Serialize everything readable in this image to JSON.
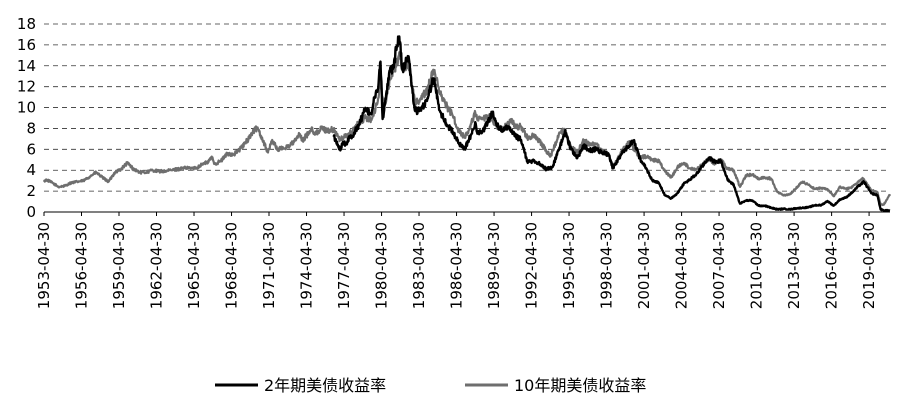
{
  "chart_data": {
    "type": "line",
    "title": "",
    "xlabel": "",
    "ylabel": "",
    "ylim": [
      0,
      18
    ],
    "y_ticks": [
      "0",
      "2",
      "4",
      "6",
      "8",
      "10",
      "12",
      "14",
      "16",
      "18"
    ],
    "x_range": [
      "1953-04-30",
      "2020-12-31"
    ],
    "x_ticks": [
      "1953-04-30",
      "1956-04-30",
      "1959-04-30",
      "1962-04-30",
      "1965-04-30",
      "1968-04-30",
      "1971-04-30",
      "1974-04-30",
      "1977-04-30",
      "1980-04-30",
      "1983-04-30",
      "1986-04-30",
      "1989-04-30",
      "1992-04-30",
      "1995-04-30",
      "1998-04-30",
      "2001-04-30",
      "2004-04-30",
      "2007-04-30",
      "2010-04-30",
      "2013-04-30",
      "2016-04-30",
      "2019-04-30"
    ],
    "grid": "horizontal dashed",
    "legend_position": "bottom",
    "series": [
      {
        "name": "2年期美债收益率",
        "color": "#000000",
        "points": [
          [
            "1976-06-30",
            7.2
          ],
          [
            "1976-12-31",
            6.0
          ],
          [
            "1977-03-31",
            6.7
          ],
          [
            "1977-06-30",
            6.5
          ],
          [
            "1977-09-30",
            7.2
          ],
          [
            "1977-12-31",
            7.3
          ],
          [
            "1978-06-30",
            8.3
          ],
          [
            "1978-12-31",
            9.8
          ],
          [
            "1979-06-30",
            9.4
          ],
          [
            "1979-09-30",
            10.9
          ],
          [
            "1979-12-31",
            11.5
          ],
          [
            "1980-03-31",
            14.4
          ],
          [
            "1980-05-31",
            8.9
          ],
          [
            "1980-08-31",
            10.8
          ],
          [
            "1980-12-31",
            13.5
          ],
          [
            "1981-03-31",
            13.7
          ],
          [
            "1981-06-30",
            15.5
          ],
          [
            "1981-09-30",
            16.8
          ],
          [
            "1981-12-31",
            13.6
          ],
          [
            "1982-03-31",
            14.3
          ],
          [
            "1982-06-30",
            14.9
          ],
          [
            "1982-09-30",
            12.0
          ],
          [
            "1982-12-31",
            9.7
          ],
          [
            "1983-06-30",
            9.7
          ],
          [
            "1983-12-31",
            10.9
          ],
          [
            "1984-06-30",
            12.8
          ],
          [
            "1984-12-31",
            9.7
          ],
          [
            "1985-06-30",
            8.5
          ],
          [
            "1985-12-31",
            7.7
          ],
          [
            "1986-06-30",
            6.6
          ],
          [
            "1986-12-31",
            6.1
          ],
          [
            "1987-06-30",
            7.4
          ],
          [
            "1987-10-31",
            8.6
          ],
          [
            "1987-12-31",
            7.5
          ],
          [
            "1988-06-30",
            7.9
          ],
          [
            "1988-12-31",
            9.0
          ],
          [
            "1989-03-31",
            9.6
          ],
          [
            "1989-06-30",
            8.5
          ],
          [
            "1989-12-31",
            7.7
          ],
          [
            "1990-06-30",
            8.2
          ],
          [
            "1990-12-31",
            7.3
          ],
          [
            "1991-06-30",
            6.9
          ],
          [
            "1991-12-31",
            4.8
          ],
          [
            "1992-06-30",
            4.9
          ],
          [
            "1992-12-31",
            4.6
          ],
          [
            "1993-06-30",
            4.1
          ],
          [
            "1993-12-31",
            4.3
          ],
          [
            "1994-06-30",
            5.9
          ],
          [
            "1994-12-31",
            7.7
          ],
          [
            "1995-06-30",
            6.0
          ],
          [
            "1995-12-31",
            5.2
          ],
          [
            "1996-06-30",
            6.3
          ],
          [
            "1996-12-31",
            5.9
          ],
          [
            "1997-06-30",
            6.0
          ],
          [
            "1997-12-31",
            5.7
          ],
          [
            "1998-06-30",
            5.5
          ],
          [
            "1998-10-31",
            4.2
          ],
          [
            "1998-12-31",
            4.5
          ],
          [
            "1999-06-30",
            5.5
          ],
          [
            "1999-12-31",
            6.2
          ],
          [
            "2000-06-30",
            6.8
          ],
          [
            "2000-12-31",
            5.1
          ],
          [
            "2001-06-30",
            4.2
          ],
          [
            "2001-12-31",
            3.0
          ],
          [
            "2002-06-30",
            2.8
          ],
          [
            "2002-12-31",
            1.6
          ],
          [
            "2003-06-30",
            1.3
          ],
          [
            "2003-12-31",
            1.8
          ],
          [
            "2004-06-30",
            2.7
          ],
          [
            "2004-12-31",
            3.1
          ],
          [
            "2005-06-30",
            3.6
          ],
          [
            "2005-12-31",
            4.4
          ],
          [
            "2006-06-30",
            5.2
          ],
          [
            "2006-12-31",
            4.8
          ],
          [
            "2007-06-30",
            4.9
          ],
          [
            "2007-12-31",
            3.1
          ],
          [
            "2008-06-30",
            2.6
          ],
          [
            "2008-12-31",
            0.8
          ],
          [
            "2009-06-30",
            1.1
          ],
          [
            "2009-12-31",
            1.1
          ],
          [
            "2010-06-30",
            0.6
          ],
          [
            "2010-12-31",
            0.6
          ],
          [
            "2011-06-30",
            0.4
          ],
          [
            "2011-12-31",
            0.25
          ],
          [
            "2012-06-30",
            0.3
          ],
          [
            "2012-12-31",
            0.25
          ],
          [
            "2013-06-30",
            0.35
          ],
          [
            "2013-12-31",
            0.4
          ],
          [
            "2014-06-30",
            0.45
          ],
          [
            "2014-12-31",
            0.65
          ],
          [
            "2015-06-30",
            0.65
          ],
          [
            "2015-12-31",
            1.05
          ],
          [
            "2016-06-30",
            0.6
          ],
          [
            "2016-12-31",
            1.2
          ],
          [
            "2017-06-30",
            1.4
          ],
          [
            "2017-12-31",
            1.9
          ],
          [
            "2018-06-30",
            2.5
          ],
          [
            "2018-11-30",
            2.9
          ],
          [
            "2019-06-30",
            1.8
          ],
          [
            "2019-12-31",
            1.6
          ],
          [
            "2020-03-31",
            0.25
          ],
          [
            "2020-06-30",
            0.16
          ],
          [
            "2020-12-31",
            0.13
          ]
        ]
      },
      {
        "name": "10年期美债收益率",
        "color": "#6e6e6e",
        "points": [
          [
            "1953-04-30",
            2.9
          ],
          [
            "1953-06-30",
            3.1
          ],
          [
            "1953-12-31",
            2.8
          ],
          [
            "1954-06-30",
            2.4
          ],
          [
            "1954-12-31",
            2.5
          ],
          [
            "1955-06-30",
            2.8
          ],
          [
            "1955-12-31",
            2.9
          ],
          [
            "1956-06-30",
            3.0
          ],
          [
            "1956-12-31",
            3.4
          ],
          [
            "1957-06-30",
            3.8
          ],
          [
            "1957-12-31",
            3.3
          ],
          [
            "1958-06-30",
            2.9
          ],
          [
            "1958-12-31",
            3.8
          ],
          [
            "1959-06-30",
            4.1
          ],
          [
            "1959-12-31",
            4.7
          ],
          [
            "1960-06-30",
            4.1
          ],
          [
            "1960-12-31",
            3.8
          ],
          [
            "1961-06-30",
            3.8
          ],
          [
            "1961-12-31",
            4.0
          ],
          [
            "1962-06-30",
            3.9
          ],
          [
            "1962-12-31",
            3.9
          ],
          [
            "1963-06-30",
            4.0
          ],
          [
            "1963-12-31",
            4.1
          ],
          [
            "1964-06-30",
            4.2
          ],
          [
            "1964-12-31",
            4.2
          ],
          [
            "1965-06-30",
            4.2
          ],
          [
            "1965-12-31",
            4.6
          ],
          [
            "1966-06-30",
            4.8
          ],
          [
            "1966-09-30",
            5.3
          ],
          [
            "1966-12-31",
            4.6
          ],
          [
            "1967-06-30",
            4.9
          ],
          [
            "1967-12-31",
            5.6
          ],
          [
            "1968-06-30",
            5.5
          ],
          [
            "1968-12-31",
            6.0
          ],
          [
            "1969-06-30",
            6.7
          ],
          [
            "1969-12-31",
            7.6
          ],
          [
            "1970-05-31",
            8.1
          ],
          [
            "1970-12-31",
            6.4
          ],
          [
            "1971-03-31",
            5.7
          ],
          [
            "1971-07-31",
            6.9
          ],
          [
            "1971-12-31",
            6.0
          ],
          [
            "1972-06-30",
            6.1
          ],
          [
            "1972-12-31",
            6.4
          ],
          [
            "1973-06-30",
            6.9
          ],
          [
            "1973-09-30",
            7.5
          ],
          [
            "1973-12-31",
            6.8
          ],
          [
            "1974-06-30",
            7.6
          ],
          [
            "1974-09-30",
            8.1
          ],
          [
            "1974-12-31",
            7.4
          ],
          [
            "1975-06-30",
            8.0
          ],
          [
            "1975-12-31",
            7.8
          ],
          [
            "1976-06-30",
            7.9
          ],
          [
            "1976-12-31",
            6.9
          ],
          [
            "1977-06-30",
            7.3
          ],
          [
            "1977-12-31",
            7.7
          ],
          [
            "1978-06-30",
            8.5
          ],
          [
            "1978-12-31",
            9.0
          ],
          [
            "1979-06-30",
            8.9
          ],
          [
            "1979-12-31",
            10.4
          ],
          [
            "1980-03-31",
            12.7
          ],
          [
            "1980-06-30",
            9.8
          ],
          [
            "1980-12-31",
            12.8
          ],
          [
            "1981-06-30",
            13.9
          ],
          [
            "1981-09-30",
            15.3
          ],
          [
            "1981-12-31",
            13.7
          ],
          [
            "1982-06-30",
            14.3
          ],
          [
            "1982-12-31",
            10.5
          ],
          [
            "1983-06-30",
            10.8
          ],
          [
            "1983-12-31",
            11.8
          ],
          [
            "1984-06-30",
            13.6
          ],
          [
            "1984-12-31",
            11.5
          ],
          [
            "1985-06-30",
            10.2
          ],
          [
            "1985-12-31",
            9.3
          ],
          [
            "1986-06-30",
            7.8
          ],
          [
            "1986-12-31",
            7.1
          ],
          [
            "1987-06-30",
            8.4
          ],
          [
            "1987-10-31",
            9.5
          ],
          [
            "1987-12-31",
            8.8
          ],
          [
            "1988-06-30",
            8.9
          ],
          [
            "1988-12-31",
            9.1
          ],
          [
            "1989-06-30",
            8.3
          ],
          [
            "1989-12-31",
            7.9
          ],
          [
            "1990-06-30",
            8.5
          ],
          [
            "1990-09-30",
            8.9
          ],
          [
            "1990-12-31",
            8.1
          ],
          [
            "1991-06-30",
            8.2
          ],
          [
            "1991-12-31",
            7.1
          ],
          [
            "1992-06-30",
            7.3
          ],
          [
            "1992-12-31",
            6.7
          ],
          [
            "1993-06-30",
            5.9
          ],
          [
            "1993-10-31",
            5.3
          ],
          [
            "1993-12-31",
            5.8
          ],
          [
            "1994-06-30",
            7.3
          ],
          [
            "1994-11-30",
            7.9
          ],
          [
            "1995-06-30",
            6.2
          ],
          [
            "1995-12-31",
            5.7
          ],
          [
            "1996-06-30",
            6.9
          ],
          [
            "1996-12-31",
            6.4
          ],
          [
            "1997-06-30",
            6.5
          ],
          [
            "1997-12-31",
            5.8
          ],
          [
            "1998-06-30",
            5.5
          ],
          [
            "1998-10-31",
            4.5
          ],
          [
            "1998-12-31",
            4.6
          ],
          [
            "1999-06-30",
            5.8
          ],
          [
            "1999-12-31",
            6.4
          ],
          [
            "2000-01-31",
            6.7
          ],
          [
            "2000-06-30",
            6.1
          ],
          [
            "2000-12-31",
            5.2
          ],
          [
            "2001-06-30",
            5.3
          ],
          [
            "2001-12-31",
            5.0
          ],
          [
            "2002-06-30",
            4.9
          ],
          [
            "2002-12-31",
            3.9
          ],
          [
            "2003-06-30",
            3.3
          ],
          [
            "2003-12-31",
            4.3
          ],
          [
            "2004-06-30",
            4.7
          ],
          [
            "2004-12-31",
            4.2
          ],
          [
            "2005-06-30",
            4.1
          ],
          [
            "2005-12-31",
            4.5
          ],
          [
            "2006-06-30",
            5.1
          ],
          [
            "2006-12-31",
            4.6
          ],
          [
            "2007-06-30",
            5.0
          ],
          [
            "2007-12-31",
            4.1
          ],
          [
            "2008-06-30",
            4.0
          ],
          [
            "2008-12-31",
            2.4
          ],
          [
            "2009-06-30",
            3.5
          ],
          [
            "2009-12-31",
            3.6
          ],
          [
            "2010-06-30",
            3.2
          ],
          [
            "2010-12-31",
            3.3
          ],
          [
            "2011-06-30",
            3.2
          ],
          [
            "2011-12-31",
            1.9
          ],
          [
            "2012-06-30",
            1.6
          ],
          [
            "2012-12-31",
            1.7
          ],
          [
            "2013-06-30",
            2.3
          ],
          [
            "2013-12-31",
            2.9
          ],
          [
            "2014-06-30",
            2.6
          ],
          [
            "2014-12-31",
            2.2
          ],
          [
            "2015-06-30",
            2.3
          ],
          [
            "2015-12-31",
            2.2
          ],
          [
            "2016-06-30",
            1.5
          ],
          [
            "2016-12-31",
            2.4
          ],
          [
            "2017-06-30",
            2.2
          ],
          [
            "2017-12-31",
            2.4
          ],
          [
            "2018-06-30",
            2.9
          ],
          [
            "2018-10-31",
            3.2
          ],
          [
            "2019-06-30",
            2.1
          ],
          [
            "2019-12-31",
            1.9
          ],
          [
            "2020-03-31",
            0.7
          ],
          [
            "2020-06-30",
            0.7
          ],
          [
            "2020-12-31",
            1.7
          ]
        ]
      }
    ]
  }
}
